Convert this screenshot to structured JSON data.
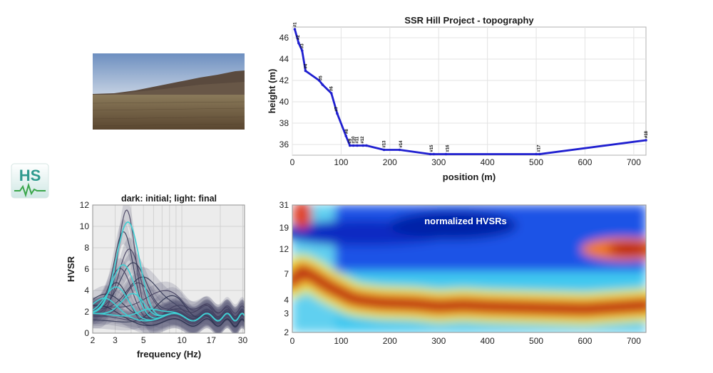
{
  "logo": {
    "text": "HS",
    "color": "#2f9a8e"
  },
  "photo": {
    "description_icon": "landscape-photo"
  },
  "chart_data": [
    {
      "type": "line",
      "title": "SSR Hill Project - topography",
      "xlabel": "position (m)",
      "ylabel": "height (m)",
      "xlim": [
        0,
        725
      ],
      "ylim": [
        35,
        47
      ],
      "xticks": [
        0,
        100,
        200,
        300,
        400,
        500,
        600,
        700
      ],
      "yticks": [
        36,
        38,
        40,
        42,
        44,
        46
      ],
      "grid": true,
      "color": "#1f1fd0",
      "series": [
        {
          "x": [
            5,
            13,
            20,
            27,
            55,
            62,
            80,
            92,
            110,
            118,
            125,
            133,
            145,
            152,
            188,
            220,
            283,
            290,
            315,
            500,
            507,
            725
          ],
          "y": [
            46.8,
            45.5,
            44.8,
            42.9,
            42.0,
            41.6,
            40.8,
            38.9,
            36.8,
            35.9,
            35.9,
            35.9,
            35.9,
            35.9,
            35.5,
            35.5,
            35.1,
            35.1,
            35.1,
            35.1,
            35.1,
            36.4
          ]
        }
      ],
      "point_labels": [
        {
          "x": 5,
          "y": 46.8,
          "label": "#1"
        },
        {
          "x": 12,
          "y": 45.6,
          "label": "#2"
        },
        {
          "x": 20,
          "y": 44.8,
          "label": "#3"
        },
        {
          "x": 27,
          "y": 42.9,
          "label": "#4"
        },
        {
          "x": 58,
          "y": 41.8,
          "label": "#5"
        },
        {
          "x": 80,
          "y": 40.8,
          "label": "#6"
        },
        {
          "x": 90,
          "y": 38.9,
          "label": "#7"
        },
        {
          "x": 111,
          "y": 36.8,
          "label": "#8"
        },
        {
          "x": 118,
          "y": 35.9,
          "label": "#9"
        },
        {
          "x": 125,
          "y": 35.9,
          "label": "#10"
        },
        {
          "x": 132,
          "y": 35.9,
          "label": "#11"
        },
        {
          "x": 143,
          "y": 35.9,
          "label": "#12"
        },
        {
          "x": 188,
          "y": 35.5,
          "label": "#13"
        },
        {
          "x": 222,
          "y": 35.5,
          "label": "#14"
        },
        {
          "x": 285,
          "y": 35.1,
          "label": "#15"
        },
        {
          "x": 318,
          "y": 35.1,
          "label": "#16"
        },
        {
          "x": 505,
          "y": 35.1,
          "label": "#17"
        },
        {
          "x": 725,
          "y": 36.4,
          "label": "#18"
        }
      ]
    },
    {
      "type": "line",
      "title": "dark: initial; light: final",
      "xlabel": "frequency (Hz)",
      "ylabel": "HVSR",
      "xscale": "log",
      "xlim": [
        2,
        31
      ],
      "ylim": [
        0,
        12
      ],
      "xticks": [
        2,
        3,
        5,
        10,
        17,
        30
      ],
      "yticks": [
        0,
        2,
        4,
        6,
        8,
        10,
        12
      ],
      "grid": true,
      "series_final": [
        {
          "name": "",
          "peak_f": 3.8,
          "peak": 10.5
        },
        {
          "name": "",
          "peak_f": 3.5,
          "peak": 6.4
        },
        {
          "name": "",
          "peak_f": 3.1,
          "peak": 4.2
        },
        {
          "name": "",
          "peak_f": 4.2,
          "peak": 3.9
        },
        {
          "name": "",
          "peak_f": 2.5,
          "peak": 3.0
        },
        {
          "name": "",
          "peak_f": 5.5,
          "peak": 2.6
        }
      ]
    },
    {
      "type": "heatmap",
      "title": "normalized HVSRs",
      "xlim": [
        0,
        725
      ],
      "xticks": [
        0,
        100,
        200,
        300,
        400,
        500,
        600,
        700
      ],
      "yscale": "log",
      "ylim": [
        2,
        31
      ],
      "yticks": [
        2,
        3,
        4,
        7,
        12,
        19,
        31
      ],
      "colormap": "jet",
      "ridge": {
        "x": [
          0,
          20,
          40,
          60,
          80,
          100,
          120,
          140,
          180,
          250,
          300,
          350,
          400,
          500,
          600,
          725
        ],
        "f": [
          6.0,
          7.5,
          6.8,
          5.9,
          5.2,
          4.7,
          4.2,
          4.0,
          3.8,
          3.7,
          3.5,
          3.6,
          3.5,
          3.4,
          3.3,
          3.6
        ]
      }
    }
  ]
}
